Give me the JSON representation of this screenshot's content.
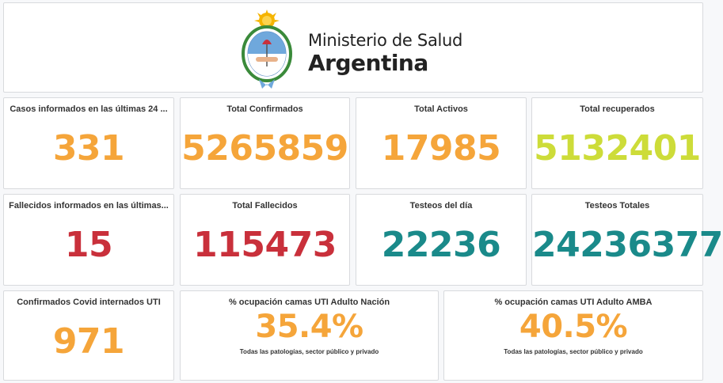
{
  "header": {
    "line1": "Ministerio de Salud",
    "line2": "Argentina",
    "logo_icon": "argentina-coat-of-arms-icon"
  },
  "colors": {
    "orange": "#f5a53a",
    "lime": "#cddc39",
    "red": "#c9303b",
    "teal": "#1a8a8a"
  },
  "stats": [
    {
      "title": "Casos informados en las últimas 24 ...",
      "value": "331"
    },
    {
      "title": "Total Confirmados",
      "value": "5265859"
    },
    {
      "title": "Total Activos",
      "value": "17985"
    },
    {
      "title": "Total recuperados",
      "value": "5132401"
    },
    {
      "title": "Fallecidos informados en las últimas...",
      "value": "15"
    },
    {
      "title": "Total Fallecidos",
      "value": "115473"
    },
    {
      "title": "Testeos del día",
      "value": "22236"
    },
    {
      "title": "Testeos Totales",
      "value": "24236377"
    },
    {
      "title": "Confirmados Covid internados UTI",
      "value": "971"
    },
    {
      "title": "% ocupación camas UTI Adulto Nación",
      "value": "35.4%",
      "subtitle": "Todas las patologías, sector público y privado"
    },
    {
      "title": "% ocupación camas UTI Adulto AMBA",
      "value": "40.5%",
      "subtitle": "Todas las patologías, sector público y privado"
    }
  ]
}
